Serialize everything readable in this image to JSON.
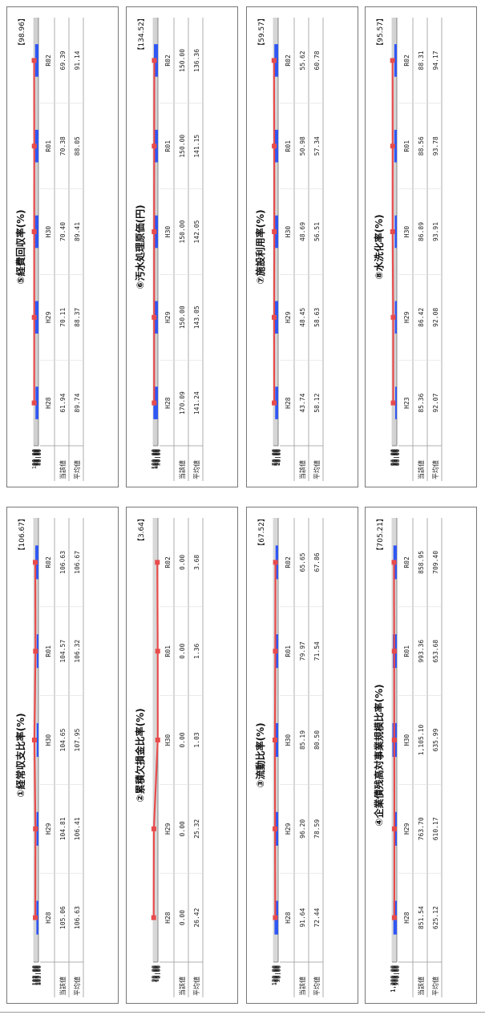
{
  "page": {
    "tick_prefix": "<"
  },
  "chart_data": [
    {
      "type": "bar",
      "title": "①経常収支比率(%)",
      "reference": "【106.67】",
      "categories": [
        "H28",
        "H29",
        "H30",
        "R01",
        "R02"
      ],
      "table_row_labels": [
        "当該値",
        "平均値"
      ],
      "series": [
        {
          "name": "当該値",
          "type": "bar",
          "values": [
            105.06,
            104.81,
            104.65,
            104.57,
            106.63
          ],
          "labels": [
            "105.06",
            "104.81",
            "104.65",
            "104.57",
            "106.63"
          ]
        },
        {
          "name": "平均値",
          "type": "line",
          "values": [
            106.63,
            106.41,
            107.95,
            106.32,
            106.67
          ],
          "labels": [
            "106.63",
            "106.41",
            "107.95",
            "106.32",
            "106.67"
          ]
        }
      ],
      "ylim": [
        102,
        109
      ],
      "yticks": [
        "102.00",
        "103.00",
        "104.00",
        "105.00",
        "106.00",
        "107.00",
        "108.00",
        "109.00"
      ],
      "bar_color": "#2f57f4",
      "line_color": "#e84b4b"
    },
    {
      "type": "line",
      "title": "②累積欠損金比率(%)",
      "reference": "【3.64】",
      "categories": [
        "H28",
        "H29",
        "H30",
        "R01",
        "R02"
      ],
      "table_row_labels": [
        "当該値",
        "平均値"
      ],
      "series": [
        {
          "name": "当該値",
          "type": "bar",
          "values": [
            0,
            0,
            0,
            0,
            0
          ],
          "labels": [
            "0.00",
            "0.00",
            "0.00",
            "0.00",
            "0.00"
          ]
        },
        {
          "name": "平均値",
          "type": "line",
          "values": [
            26.42,
            25.32,
            1.03,
            1.36,
            3.68
          ],
          "labels": [
            "26.42",
            "25.32",
            "1.03",
            "1.36",
            "3.68"
          ]
        }
      ],
      "ylim": [
        0,
        30
      ],
      "yticks": [
        "0.00",
        "5.00",
        "10.00",
        "15.00",
        "20.00",
        "25.00",
        "30.00"
      ],
      "bar_color": "#2f57f4",
      "line_color": "#e84b4b"
    },
    {
      "type": "bar",
      "title": "③流動比率(%)",
      "reference": "【67.52】",
      "categories": [
        "H28",
        "H29",
        "H30",
        "R01",
        "R02"
      ],
      "table_row_labels": [
        "当該値",
        "平均値"
      ],
      "series": [
        {
          "name": "当該値",
          "type": "bar",
          "values": [
            91.64,
            96.2,
            85.19,
            79.97,
            65.65
          ],
          "labels": [
            "91.64",
            "96.20",
            "85.19",
            "79.97",
            "65.65"
          ]
        },
        {
          "name": "平均値",
          "type": "line",
          "values": [
            72.44,
            78.59,
            80.5,
            71.54,
            67.86
          ],
          "labels": [
            "72.44",
            "78.59",
            "80.50",
            "71.54",
            "67.86"
          ]
        }
      ],
      "ylim": [
        0,
        120
      ],
      "yticks": [
        "0.00",
        "20.00",
        "40.00",
        "60.00",
        "80.00",
        "100.00",
        "120.00"
      ],
      "bar_color": "#2f57f4",
      "line_color": "#e84b4b"
    },
    {
      "type": "bar",
      "title": "④企業債残高対事業規模比率(%)",
      "reference": "【705.21】",
      "categories": [
        "H28",
        "H29",
        "H30",
        "R01",
        "R02"
      ],
      "table_row_labels": [
        "当該値",
        "平均値"
      ],
      "series": [
        {
          "name": "当該値",
          "type": "bar",
          "values": [
            851.54,
            763.7,
            1105.1,
            993.36,
            858.95
          ],
          "labels": [
            "851.54",
            "763.70",
            "1,105.10",
            "993.36",
            "858.95"
          ]
        },
        {
          "name": "平均値",
          "type": "line",
          "values": [
            625.12,
            610.17,
            635.99,
            653.68,
            709.4
          ],
          "labels": [
            "625.12",
            "610.17",
            "635.99",
            "653.68",
            "709.40"
          ]
        }
      ],
      "ylim": [
        0,
        1200
      ],
      "yticks": [
        "0.00",
        "200.00",
        "400.00",
        "600.00",
        "800.00",
        "1,000.00",
        "1,200.00"
      ],
      "bar_color": "#2f57f4",
      "line_color": "#e84b4b"
    },
    {
      "type": "bar",
      "title": "⑤経費回収率(%)",
      "reference": "【98.96】",
      "categories": [
        "H28",
        "H29",
        "H30",
        "R01",
        "R02"
      ],
      "table_row_labels": [
        "当該値",
        "平均値"
      ],
      "series": [
        {
          "name": "当該値",
          "type": "bar",
          "values": [
            61.94,
            70.11,
            70.4,
            70.38,
            69.39
          ],
          "labels": [
            "61.94",
            "70.11",
            "70.40",
            "70.38",
            "69.39"
          ]
        },
        {
          "name": "平均値",
          "type": "line",
          "values": [
            89.74,
            88.37,
            89.41,
            88.05,
            91.14
          ],
          "labels": [
            "89.74",
            "88.37",
            "89.41",
            "88.05",
            "91.14"
          ]
        }
      ],
      "ylim": [
        0,
        100
      ],
      "yticks": [
        "0.00",
        "10.00",
        "20.00",
        "30.00",
        "40.00",
        "50.00",
        "60.00",
        "70.00",
        "80.00",
        "90.00",
        "100.00"
      ],
      "bar_color": "#2f57f4",
      "line_color": "#e84b4b"
    },
    {
      "type": "bar",
      "title": "⑥汚水処理原価(円)",
      "reference": "【134.52】",
      "categories": [
        "H28",
        "H29",
        "H30",
        "R01",
        "R02"
      ],
      "table_row_labels": [
        "当該値",
        "平均値"
      ],
      "series": [
        {
          "name": "当該値",
          "type": "bar",
          "values": [
            170.09,
            150.0,
            150.0,
            150.0,
            150.0
          ],
          "labels": [
            "170.09",
            "150.00",
            "150.00",
            "150.00",
            "150.00"
          ]
        },
        {
          "name": "平均値",
          "type": "line",
          "values": [
            141.24,
            143.05,
            142.05,
            141.15,
            136.36
          ],
          "labels": [
            "141.24",
            "143.05",
            "142.05",
            "141.15",
            "136.36"
          ]
        }
      ],
      "ylim": [
        0,
        180
      ],
      "yticks": [
        "0.00",
        "20.00",
        "40.00",
        "60.00",
        "80.00",
        "100.00",
        "120.00",
        "140.00",
        "160.00",
        "180.00"
      ],
      "bar_color": "#2f57f4",
      "line_color": "#e84b4b"
    },
    {
      "type": "bar",
      "title": "⑦施設利用率(%)",
      "reference": "【59.57】",
      "categories": [
        "H28",
        "H29",
        "H30",
        "R01",
        "R02"
      ],
      "table_row_labels": [
        "当該値",
        "平均値"
      ],
      "series": [
        {
          "name": "当該値",
          "type": "bar",
          "values": [
            43.74,
            48.45,
            48.69,
            50.98,
            55.62
          ],
          "labels": [
            "43.74",
            "48.45",
            "48.69",
            "50.98",
            "55.62"
          ]
        },
        {
          "name": "平均値",
          "type": "line",
          "values": [
            58.12,
            58.63,
            56.51,
            57.34,
            60.78
          ],
          "labels": [
            "58.12",
            "58.63",
            "56.51",
            "57.34",
            "60.78"
          ]
        }
      ],
      "ylim": [
        0,
        70
      ],
      "yticks": [
        "0.00",
        "10.00",
        "20.00",
        "30.00",
        "40.00",
        "50.00",
        "60.00",
        "70.00"
      ],
      "bar_color": "#2f57f4",
      "line_color": "#e84b4b"
    },
    {
      "type": "bar",
      "title": "⑧水洗化率(%)",
      "reference": "【95.57】",
      "categories": [
        "H23",
        "H29",
        "H30",
        "R01",
        "R02"
      ],
      "table_row_labels": [
        "当該値",
        "平均値"
      ],
      "series": [
        {
          "name": "当該値",
          "type": "bar",
          "values": [
            85.36,
            86.42,
            86.89,
            88.56,
            88.31
          ],
          "labels": [
            "85.36",
            "86.42",
            "86.89",
            "88.56",
            "88.31"
          ]
        },
        {
          "name": "平均値",
          "type": "line",
          "values": [
            92.07,
            92.08,
            93.91,
            93.78,
            94.17
          ],
          "labels": [
            "92.07",
            "92.08",
            "93.91",
            "93.78",
            "94.17"
          ]
        }
      ],
      "ylim": [
        80,
        96
      ],
      "yticks": [
        "80.00",
        "82.00",
        "84.00",
        "86.00",
        "88.00",
        "90.00",
        "92.00",
        "94.00",
        "96.00"
      ],
      "bar_color": "#2f57f4",
      "line_color": "#e84b4b"
    }
  ]
}
